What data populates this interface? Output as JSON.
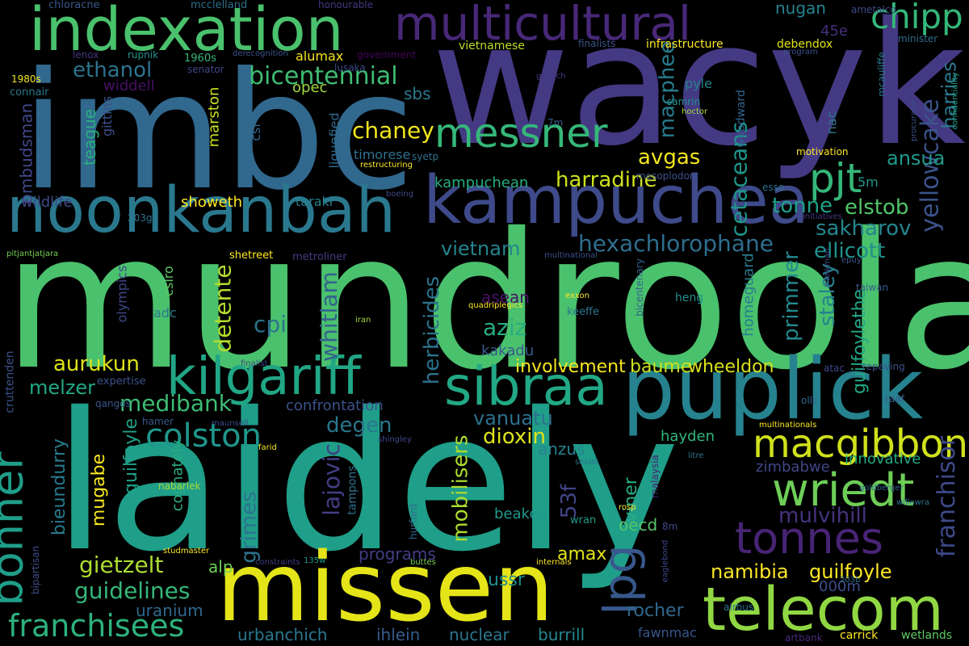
{
  "palette": [
    "#440154",
    "#482878",
    "#3e4989",
    "#31688e",
    "#26828e",
    "#1f9e89",
    "#35b779",
    "#6ece58",
    "#b5de2b",
    "#fde725"
  ],
  "words": [
    {
      "text": "mundroola",
      "color": "#4ac16d"
    },
    {
      "text": "laidely",
      "color": "#1f9e89"
    },
    {
      "text": "wacyk",
      "color": "#443983"
    },
    {
      "text": "imbc",
      "color": "#31688e"
    },
    {
      "text": "puplick",
      "color": "#26828e"
    },
    {
      "text": "missen",
      "color": "#e5e419"
    },
    {
      "text": "noonkanbah",
      "color": "#2a788e"
    },
    {
      "text": "indexation",
      "color": "#4ac16d"
    },
    {
      "text": "kampuchea",
      "color": "#3e4a89"
    },
    {
      "text": "kilgariff",
      "color": "#21a685"
    },
    {
      "text": "telecom",
      "color": "#90d743"
    },
    {
      "text": "multicultural",
      "color": "#482878"
    },
    {
      "text": "sibraa",
      "color": "#22a884"
    },
    {
      "text": "messner",
      "color": "#35b779"
    },
    {
      "text": "macgibbon",
      "color": "#d0e11c"
    },
    {
      "text": "wriedt",
      "color": "#6ece58"
    },
    {
      "text": "tonnes",
      "color": "#482475"
    },
    {
      "text": "bonner",
      "color": "#1f9e89"
    },
    {
      "text": "lpg",
      "color": "#38588c"
    },
    {
      "text": "pjt",
      "color": "#35b779"
    },
    {
      "text": "colston",
      "color": "#1f968b"
    },
    {
      "text": "franchisees",
      "color": "#2db27d"
    },
    {
      "text": "chipp",
      "color": "#35b779"
    },
    {
      "text": "yellowcake",
      "color": "#3b528b"
    },
    {
      "text": "franchisor",
      "color": "#3e4989"
    },
    {
      "text": "bicentennial",
      "color": "#3fbc73"
    },
    {
      "text": "hexachlorophane",
      "color": "#2e6e8e"
    },
    {
      "text": "namibia",
      "color": "#fde725"
    },
    {
      "text": "guilfoyle",
      "color": "#fde725"
    },
    {
      "text": "ethanol",
      "color": "#2c738e"
    },
    {
      "text": "medibank",
      "color": "#3dbc74"
    },
    {
      "text": "aurukun",
      "color": "#dde318"
    },
    {
      "text": "gietzelt",
      "color": "#addc30"
    },
    {
      "text": "guidelines",
      "color": "#35b779"
    },
    {
      "text": "chaney",
      "color": "#f1e51d"
    },
    {
      "text": "cetaceans",
      "color": "#1f958b"
    },
    {
      "text": "sakharov",
      "color": "#25858e"
    },
    {
      "text": "ellicott",
      "color": "#21918c"
    },
    {
      "text": "elstob",
      "color": "#52c569"
    },
    {
      "text": "ansua",
      "color": "#1f9a8a"
    },
    {
      "text": "harries",
      "color": "#2a788e"
    },
    {
      "text": "macphee",
      "color": "#287c8e"
    },
    {
      "text": "avgas",
      "color": "#f1e51d"
    },
    {
      "text": "harradine",
      "color": "#cde11d"
    },
    {
      "text": "kampuchean",
      "color": "#26ad81"
    },
    {
      "text": "tonne",
      "color": "#1fa088"
    },
    {
      "text": "vietnam",
      "color": "#25848e"
    },
    {
      "text": "aziz",
      "color": "#28ae80"
    },
    {
      "text": "cpi",
      "color": "#2c728e"
    },
    {
      "text": "herbicides",
      "color": "#2c728e"
    },
    {
      "text": "whitlam",
      "color": "#34618d"
    },
    {
      "text": "detente",
      "color": "#b2dd2d"
    },
    {
      "text": "lajovic",
      "color": "#433e85"
    },
    {
      "text": "mobilisers",
      "color": "#addc30"
    },
    {
      "text": "grimes",
      "color": "#2c738e"
    },
    {
      "text": "mulvihill",
      "color": "#46337e"
    },
    {
      "text": "primmer",
      "color": "#23898e"
    },
    {
      "text": "staley",
      "color": "#26828e"
    },
    {
      "text": "guilfoylethe",
      "color": "#22a785"
    },
    {
      "text": "dioxin",
      "color": "#dde318"
    },
    {
      "text": "degen",
      "color": "#2a778e"
    },
    {
      "text": "vanuatu",
      "color": "#2d708e"
    },
    {
      "text": "involvement",
      "color": "#f6e620"
    },
    {
      "text": "baume",
      "color": "#cde11d"
    },
    {
      "text": "wheeldon",
      "color": "#d8e219"
    },
    {
      "text": "melzer",
      "color": "#22a884"
    },
    {
      "text": "confrontation",
      "color": "#3b528b"
    },
    {
      "text": "bieundurry",
      "color": "#297b8e"
    },
    {
      "text": "guilfoyle",
      "color": "#1fa088"
    },
    {
      "text": "mugabe",
      "color": "#f8e621"
    },
    {
      "text": "cognately",
      "color": "#29af7f"
    },
    {
      "text": "amax",
      "color": "#e2e418"
    },
    {
      "text": "53f",
      "color": "#414487"
    },
    {
      "text": "viner",
      "color": "#27ad81"
    },
    {
      "text": "anzus",
      "color": "#26828e"
    },
    {
      "text": "uranium",
      "color": "#31688e"
    },
    {
      "text": "ussr",
      "color": "#228d8d"
    },
    {
      "text": "rocher",
      "color": "#31678e"
    },
    {
      "text": "burrill",
      "color": "#23888e"
    },
    {
      "text": "nuclear",
      "color": "#2a768e"
    },
    {
      "text": "ihlein",
      "color": "#365c8d"
    },
    {
      "text": "urbanchich",
      "color": "#2a788e"
    },
    {
      "text": "programs",
      "color": "#433e85"
    },
    {
      "text": "alp",
      "color": "#70cf57"
    },
    {
      "text": "000m",
      "color": "#3d4d8a"
    },
    {
      "text": "fawnmac",
      "color": "#39558c"
    },
    {
      "text": "beaked",
      "color": "#1f988b"
    },
    {
      "text": "oecd",
      "color": "#54c568"
    },
    {
      "text": "hayden",
      "color": "#31b57b"
    },
    {
      "text": "innovative",
      "color": "#23a983"
    },
    {
      "text": "zimbabwe",
      "color": "#3f4788"
    },
    {
      "text": "asean",
      "color": "#471164"
    },
    {
      "text": "kakadu",
      "color": "#38598c"
    },
    {
      "text": "homeguard",
      "color": "#287d8e"
    },
    {
      "text": "ombudsman",
      "color": "#3f4889"
    },
    {
      "text": "teague",
      "color": "#2ab07f"
    },
    {
      "text": "widdell",
      "color": "#471063"
    },
    {
      "text": "gittins",
      "color": "#3b518b"
    },
    {
      "text": "marston",
      "color": "#cae11f"
    },
    {
      "text": "opec",
      "color": "#9fda3a"
    },
    {
      "text": "alumax",
      "color": "#f4e61e"
    },
    {
      "text": "sbs",
      "color": "#2a788e"
    },
    {
      "text": "liquefied",
      "color": "#30698e"
    },
    {
      "text": "csl",
      "color": "#32658e"
    },
    {
      "text": "timorese",
      "color": "#2d708e"
    },
    {
      "text": "showeth",
      "color": "#fde725"
    },
    {
      "text": "taraki",
      "color": "#25838e"
    },
    {
      "text": "wildlife",
      "color": "#3e4989"
    },
    {
      "text": "nugan",
      "color": "#26828e"
    },
    {
      "text": "45e",
      "color": "#46307e"
    },
    {
      "text": "5m",
      "color": "#1f9a8a"
    },
    {
      "text": "nac",
      "color": "#2b758e"
    },
    {
      "text": "woodward",
      "color": "#32648e"
    },
    {
      "text": "mesoplodon",
      "color": "#3b528b"
    },
    {
      "text": "esso",
      "color": "#2c718e"
    },
    {
      "text": "motivation",
      "color": "#fde725"
    },
    {
      "text": "samrin",
      "color": "#1f948c"
    },
    {
      "text": "pyle",
      "color": "#26828e"
    },
    {
      "text": "mcauliffe",
      "color": "#2a768e"
    },
    {
      "text": "infrastructure",
      "color": "#fde725"
    },
    {
      "text": "debendox",
      "color": "#e2e418"
    },
    {
      "text": "finalists",
      "color": "#3b528b"
    },
    {
      "text": "vietnamese",
      "color": "#bade28"
    },
    {
      "text": "syetp",
      "color": "#2d718e"
    },
    {
      "text": "restructuring",
      "color": "#fde725"
    },
    {
      "text": "7m",
      "color": "#365d8d"
    },
    {
      "text": "hoctor",
      "color": "#a5db36"
    },
    {
      "text": "giersch",
      "color": "#443b84"
    },
    {
      "text": "minister",
      "color": "#2e6f8e"
    },
    {
      "text": "ametalco",
      "color": "#3e4c8a"
    },
    {
      "text": "confidentiality",
      "color": "#1f9e89"
    },
    {
      "text": "procurator",
      "color": "#3b528b"
    },
    {
      "text": "program",
      "color": "#3d4d8a"
    },
    {
      "text": "government",
      "color": "#450559"
    },
    {
      "text": "derecognition",
      "color": "#39568c"
    },
    {
      "text": "lusaka",
      "color": "#3e4989"
    },
    {
      "text": "senator",
      "color": "#404688"
    },
    {
      "text": "1960s",
      "color": "#35b779"
    },
    {
      "text": "rupnik",
      "color": "#20928c"
    },
    {
      "text": "lenox",
      "color": "#453781"
    },
    {
      "text": "mcclelland",
      "color": "#2e6e8e"
    },
    {
      "text": "chloracne",
      "color": "#38588c"
    },
    {
      "text": "honourable",
      "color": "#443983"
    },
    {
      "text": "1980s",
      "color": "#f1e51d"
    },
    {
      "text": "connair",
      "color": "#2a788e"
    },
    {
      "text": "203g",
      "color": "#2c728e"
    },
    {
      "text": "boeing",
      "color": "#3e4989"
    },
    {
      "text": "initiatives",
      "color": "#453882"
    },
    {
      "text": "pitjantjatjara",
      "color": "#75d054"
    },
    {
      "text": "shetreet",
      "color": "#fde725"
    },
    {
      "text": "metroliner",
      "color": "#433d84"
    },
    {
      "text": "multinational",
      "color": "#3b528b"
    },
    {
      "text": "csiro",
      "color": "#5ec962"
    },
    {
      "text": "olympics",
      "color": "#3f4889"
    },
    {
      "text": "adc",
      "color": "#2a788e"
    },
    {
      "text": "quadriplegics",
      "color": "#fde725"
    },
    {
      "text": "exxon",
      "color": "#fde725"
    },
    {
      "text": "keeffe",
      "color": "#2b758e"
    },
    {
      "text": "iran",
      "color": "#a2da37"
    },
    {
      "text": "heng",
      "color": "#21918c"
    },
    {
      "text": "bicentenary",
      "color": "#32648e"
    },
    {
      "text": "melkman",
      "color": "#3f4788"
    },
    {
      "text": "epuy",
      "color": "#3b528b"
    },
    {
      "text": "taiwan",
      "color": "#38598c"
    },
    {
      "text": "finalist",
      "color": "#3e4989"
    },
    {
      "text": "expertise",
      "color": "#3b528b"
    },
    {
      "text": "qangos",
      "color": "#39568c"
    },
    {
      "text": "cruttenden",
      "color": "#3b518b"
    },
    {
      "text": "hamer",
      "color": "#38588c"
    },
    {
      "text": "maunsell",
      "color": "#3e4a89"
    },
    {
      "text": "shingley",
      "color": "#3f4889"
    },
    {
      "text": "farid",
      "color": "#f4e61e"
    },
    {
      "text": "nabarlek",
      "color": "#a8db34"
    },
    {
      "text": "tampons",
      "color": "#2d708e"
    },
    {
      "text": "sexist",
      "color": "#2d708e"
    },
    {
      "text": "malaysia",
      "color": "#482071"
    },
    {
      "text": "litre",
      "color": "#2c738e"
    },
    {
      "text": "goldberger",
      "color": "#31678e"
    },
    {
      "text": "willowra",
      "color": "#2c728e"
    },
    {
      "text": "rosp",
      "color": "#fde725"
    },
    {
      "text": "wran",
      "color": "#1f9a8a"
    },
    {
      "text": "hurford",
      "color": "#2f6b8e"
    },
    {
      "text": "studmaster",
      "color": "#fde725"
    },
    {
      "text": "constraints",
      "color": "#433e85"
    },
    {
      "text": "135w",
      "color": "#1f9e89"
    },
    {
      "text": "buttes",
      "color": "#7ad151"
    },
    {
      "text": "internals",
      "color": "#fde725"
    },
    {
      "text": "eaglebond",
      "color": "#3e4989"
    },
    {
      "text": "airbus",
      "color": "#2c728e"
    },
    {
      "text": "203b",
      "color": "#2c728e"
    },
    {
      "text": "8m",
      "color": "#3f4788"
    },
    {
      "text": "bipartisan",
      "color": "#3e4c8a"
    },
    {
      "text": "artbank",
      "color": "#482878"
    },
    {
      "text": "carrick",
      "color": "#fde725"
    },
    {
      "text": "wetlands",
      "color": "#5ec962"
    },
    {
      "text": "atac",
      "color": "#3e4989"
    },
    {
      "text": "repaving",
      "color": "#3b528b"
    },
    {
      "text": "olle",
      "color": "#31688e"
    },
    {
      "text": "raaf",
      "color": "#38598c"
    },
    {
      "text": "multinationals",
      "color": "#fde725"
    }
  ]
}
